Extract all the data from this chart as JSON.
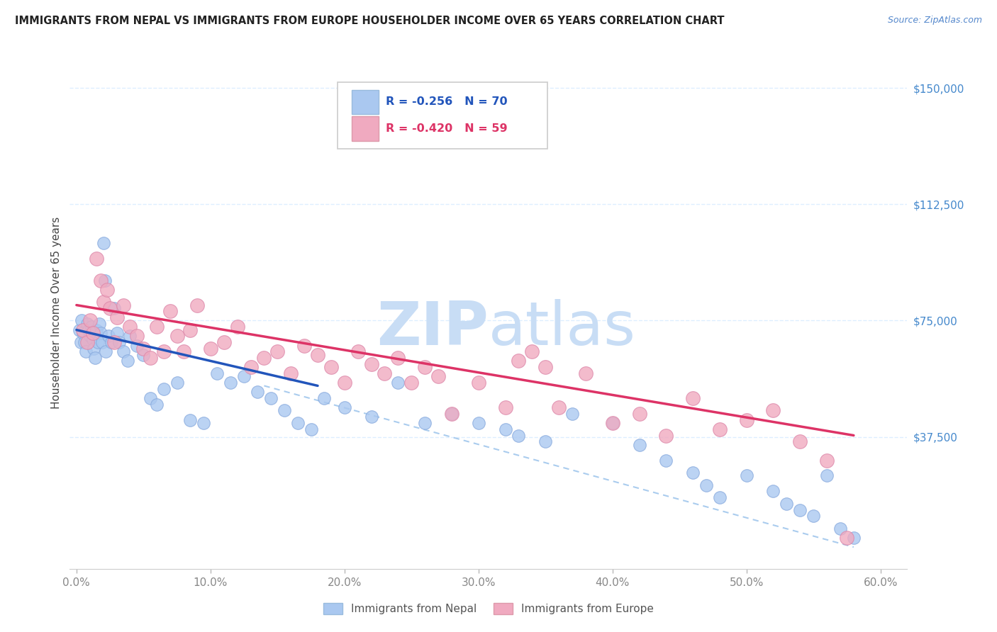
{
  "title": "IMMIGRANTS FROM NEPAL VS IMMIGRANTS FROM EUROPE HOUSEHOLDER INCOME OVER 65 YEARS CORRELATION CHART",
  "source": "Source: ZipAtlas.com",
  "ylabel": "Householder Income Over 65 years",
  "xlabel_ticks": [
    "0.0%",
    "10.0%",
    "20.0%",
    "30.0%",
    "40.0%",
    "50.0%",
    "60.0%"
  ],
  "xlabel_vals": [
    0.0,
    10.0,
    20.0,
    30.0,
    40.0,
    50.0,
    60.0
  ],
  "ytick_labels": [
    "$150,000",
    "$112,500",
    "$75,000",
    "$37,500"
  ],
  "ytick_vals": [
    150000,
    112500,
    75000,
    37500
  ],
  "ylim": [
    -5000,
    160000
  ],
  "xlim": [
    -0.5,
    62
  ],
  "nepal_color": "#aac8f0",
  "europe_color": "#f0aac0",
  "nepal_line_color": "#2255bb",
  "europe_line_color": "#dd3366",
  "dashed_line_color": "#aaccee",
  "background_color": "#ffffff",
  "grid_color": "#ddeeff",
  "title_color": "#222222",
  "source_color": "#5588cc",
  "axis_label_color": "#444444",
  "tick_color_y": "#4488cc",
  "tick_color_x": "#888888",
  "watermark_zip": "ZIP",
  "watermark_atlas": "atlas",
  "watermark_color": "#c8ddf5",
  "legend_nepal_label": "R = -0.256   N = 70",
  "legend_europe_label": "R = -0.420   N = 59",
  "nepal_scatter_x": [
    0.2,
    0.3,
    0.4,
    0.5,
    0.6,
    0.7,
    0.8,
    0.9,
    1.0,
    1.1,
    1.2,
    1.3,
    1.4,
    1.5,
    1.6,
    1.7,
    1.8,
    1.9,
    2.0,
    2.1,
    2.2,
    2.4,
    2.6,
    2.8,
    3.0,
    3.2,
    3.5,
    3.8,
    4.0,
    4.5,
    5.0,
    5.5,
    6.0,
    6.5,
    7.5,
    8.5,
    9.5,
    10.5,
    11.5,
    12.5,
    13.5,
    14.5,
    15.5,
    16.5,
    17.5,
    18.5,
    20.0,
    22.0,
    24.0,
    26.0,
    28.0,
    30.0,
    32.0,
    33.0,
    35.0,
    37.0,
    40.0,
    42.0,
    44.0,
    46.0,
    47.0,
    48.0,
    50.0,
    52.0,
    53.0,
    54.0,
    55.0,
    56.0,
    57.0,
    58.0
  ],
  "nepal_scatter_y": [
    72000,
    68000,
    75000,
    71000,
    68000,
    65000,
    74000,
    72000,
    70000,
    73000,
    69000,
    66000,
    63000,
    72000,
    68000,
    74000,
    71000,
    68000,
    100000,
    88000,
    65000,
    70000,
    68000,
    79000,
    71000,
    68000,
    65000,
    62000,
    70000,
    67000,
    64000,
    50000,
    48000,
    53000,
    55000,
    43000,
    42000,
    58000,
    55000,
    57000,
    52000,
    50000,
    46000,
    42000,
    40000,
    50000,
    47000,
    44000,
    55000,
    42000,
    45000,
    42000,
    40000,
    38000,
    36000,
    45000,
    42000,
    35000,
    30000,
    26000,
    22000,
    18000,
    25000,
    20000,
    16000,
    14000,
    12000,
    25000,
    8000,
    5000
  ],
  "europe_scatter_x": [
    0.5,
    0.8,
    1.0,
    1.2,
    1.5,
    1.8,
    2.0,
    2.3,
    2.5,
    2.8,
    3.0,
    3.5,
    4.0,
    4.5,
    5.0,
    5.5,
    6.0,
    6.5,
    7.0,
    7.5,
    8.0,
    8.5,
    9.0,
    10.0,
    11.0,
    12.0,
    13.0,
    14.0,
    15.0,
    16.0,
    17.0,
    18.0,
    19.0,
    20.0,
    21.0,
    22.0,
    23.0,
    24.0,
    25.0,
    26.0,
    27.0,
    28.0,
    30.0,
    32.0,
    33.0,
    34.0,
    35.0,
    36.0,
    38.0,
    40.0,
    42.0,
    44.0,
    46.0,
    48.0,
    50.0,
    52.0,
    54.0,
    56.0,
    57.5
  ],
  "europe_scatter_y": [
    72000,
    68000,
    75000,
    71000,
    95000,
    88000,
    81000,
    85000,
    79000,
    68000,
    76000,
    80000,
    73000,
    70000,
    66000,
    63000,
    73000,
    65000,
    78000,
    70000,
    65000,
    72000,
    80000,
    66000,
    68000,
    73000,
    60000,
    63000,
    65000,
    58000,
    67000,
    64000,
    60000,
    55000,
    65000,
    61000,
    58000,
    63000,
    55000,
    60000,
    57000,
    45000,
    55000,
    47000,
    62000,
    65000,
    60000,
    47000,
    58000,
    42000,
    45000,
    38000,
    50000,
    40000,
    43000,
    46000,
    36000,
    30000,
    5000
  ],
  "nepal_trend_x0": 0.0,
  "nepal_trend_x1": 18.0,
  "nepal_trend_y0": 72000,
  "nepal_trend_y1": 54000,
  "europe_trend_x0": 0.0,
  "europe_trend_x1": 58.0,
  "europe_trend_y0": 80000,
  "europe_trend_y1": 38000,
  "dashed_x0": 14.0,
  "dashed_x1": 58.0,
  "dashed_y0": 54000,
  "dashed_y1": 2000
}
